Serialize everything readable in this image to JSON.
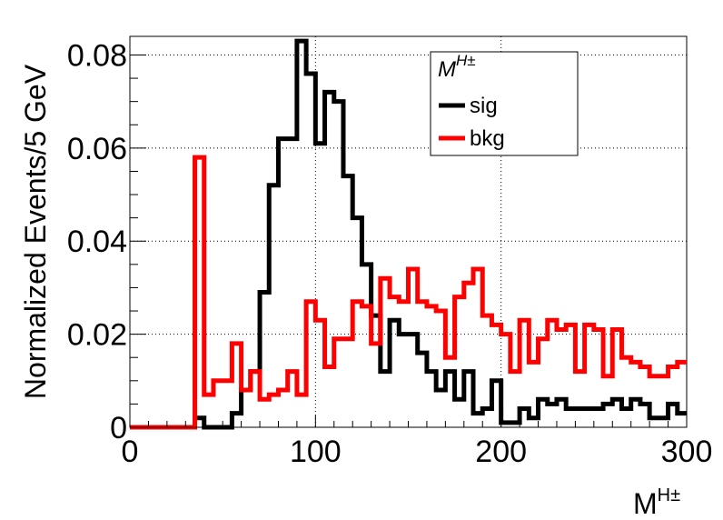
{
  "chart_data": {
    "type": "line",
    "style": "step-histogram",
    "xlabel": "M",
    "xlabel_superscript": "H±",
    "ylabel": "Normalized Events/5 GeV",
    "legend_title": "M",
    "legend_title_superscript": "H±",
    "legend_position": "top-center",
    "grid": true,
    "xlim": [
      0,
      300
    ],
    "ylim": [
      0,
      0.084
    ],
    "x_ticks": [
      0,
      100,
      200,
      300
    ],
    "x_tick_labels": [
      "0",
      "100",
      "200",
      "300"
    ],
    "y_ticks": [
      0,
      0.02,
      0.04,
      0.06,
      0.08
    ],
    "y_tick_labels": [
      "0",
      "0.02",
      "0.04",
      "0.06",
      "0.08"
    ],
    "bin_width": 5,
    "bin_edges_start": 0,
    "series": [
      {
        "name": "sig",
        "color": "#000000",
        "values": [
          0,
          0,
          0,
          0,
          0,
          0,
          0,
          0.002,
          0,
          0,
          0,
          0.003,
          0.008,
          0.012,
          0.029,
          0.052,
          0.062,
          0.062,
          0.083,
          0.076,
          0.061,
          0.072,
          0.07,
          0.054,
          0.045,
          0.035,
          0.024,
          0.012,
          0.023,
          0.02,
          0.02,
          0.016,
          0.012,
          0.008,
          0.012,
          0.006,
          0.012,
          0.003,
          0.004,
          0.01,
          0.001,
          0.001,
          0.004,
          0.002,
          0.006,
          0.005,
          0.006,
          0.004,
          0.004,
          0.004,
          0.004,
          0.005,
          0.006,
          0.004,
          0.006,
          0.005,
          0.002,
          0.002,
          0.005,
          0.003
        ]
      },
      {
        "name": "bkg",
        "color": "#ff0000",
        "values": [
          0,
          0,
          0,
          0,
          0,
          0,
          0,
          0.058,
          0.007,
          0.01,
          0.01,
          0.018,
          0.008,
          0.012,
          0.006,
          0.007,
          0.008,
          0.012,
          0.007,
          0.027,
          0.023,
          0.013,
          0.019,
          0.019,
          0.027,
          0.026,
          0.018,
          0.032,
          0.028,
          0.027,
          0.034,
          0.027,
          0.026,
          0.025,
          0.015,
          0.028,
          0.031,
          0.034,
          0.024,
          0.022,
          0.02,
          0.012,
          0.023,
          0.014,
          0.019,
          0.023,
          0.021,
          0.022,
          0.012,
          0.022,
          0.021,
          0.011,
          0.021,
          0.015,
          0.014,
          0.013,
          0.011,
          0.011,
          0.013,
          0.014
        ]
      }
    ]
  }
}
